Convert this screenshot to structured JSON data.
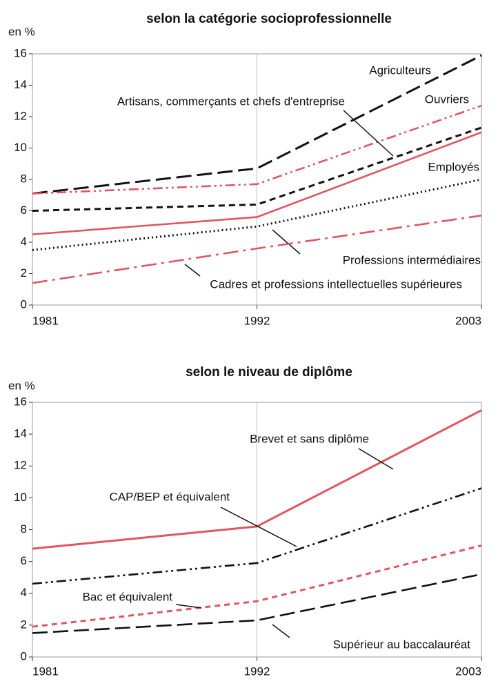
{
  "chart_data": [
    {
      "type": "line",
      "title": "selon la catégorie socioprofessionnelle",
      "y_label": "en %",
      "x": [
        1981,
        1992,
        2003
      ],
      "xlim": [
        1981,
        2003
      ],
      "xticks": [
        1981,
        1992,
        2003
      ],
      "ylim": [
        0,
        16
      ],
      "yticks": [
        0,
        2,
        4,
        6,
        8,
        10,
        12,
        14,
        16
      ],
      "series": [
        {
          "name": "Agriculteurs",
          "color": "#111111",
          "values": [
            7.1,
            8.7,
            15.9
          ]
        },
        {
          "name": "Ouvriers",
          "color": "#e05560",
          "values": [
            7.1,
            7.7,
            12.7
          ]
        },
        {
          "name": "Artisans, commerçants et chefs d'entreprise",
          "color": "#111111",
          "values": [
            6.0,
            6.4,
            11.3
          ]
        },
        {
          "name": "Employés",
          "color": "#e05560",
          "values": [
            4.5,
            5.6,
            11.0
          ]
        },
        {
          "name": "Professions intermédiaires",
          "color": "#111111",
          "values": [
            3.5,
            5.0,
            8.0
          ]
        },
        {
          "name": "Cadres et professions intellectuelles supérieures",
          "color": "#e05560",
          "values": [
            1.4,
            3.6,
            5.7
          ]
        }
      ]
    },
    {
      "type": "line",
      "title": "selon le niveau de diplôme",
      "y_label": "en %",
      "x": [
        1981,
        1992,
        2003
      ],
      "xlim": [
        1981,
        2003
      ],
      "xticks": [
        1981,
        1992,
        2003
      ],
      "ylim": [
        0,
        16
      ],
      "yticks": [
        0,
        2,
        4,
        6,
        8,
        10,
        12,
        14,
        16
      ],
      "series": [
        {
          "name": "Brevet et sans diplôme",
          "color": "#e05560",
          "values": [
            6.8,
            8.2,
            15.5
          ]
        },
        {
          "name": "CAP/BEP et équivalent",
          "color": "#111111",
          "values": [
            4.6,
            5.9,
            10.6
          ]
        },
        {
          "name": "Bac et équivalent",
          "color": "#e05560",
          "values": [
            1.9,
            3.5,
            7.0
          ]
        },
        {
          "name": "Supérieur au baccalauréat",
          "color": "#111111",
          "values": [
            1.5,
            2.3,
            5.2
          ]
        }
      ]
    }
  ]
}
